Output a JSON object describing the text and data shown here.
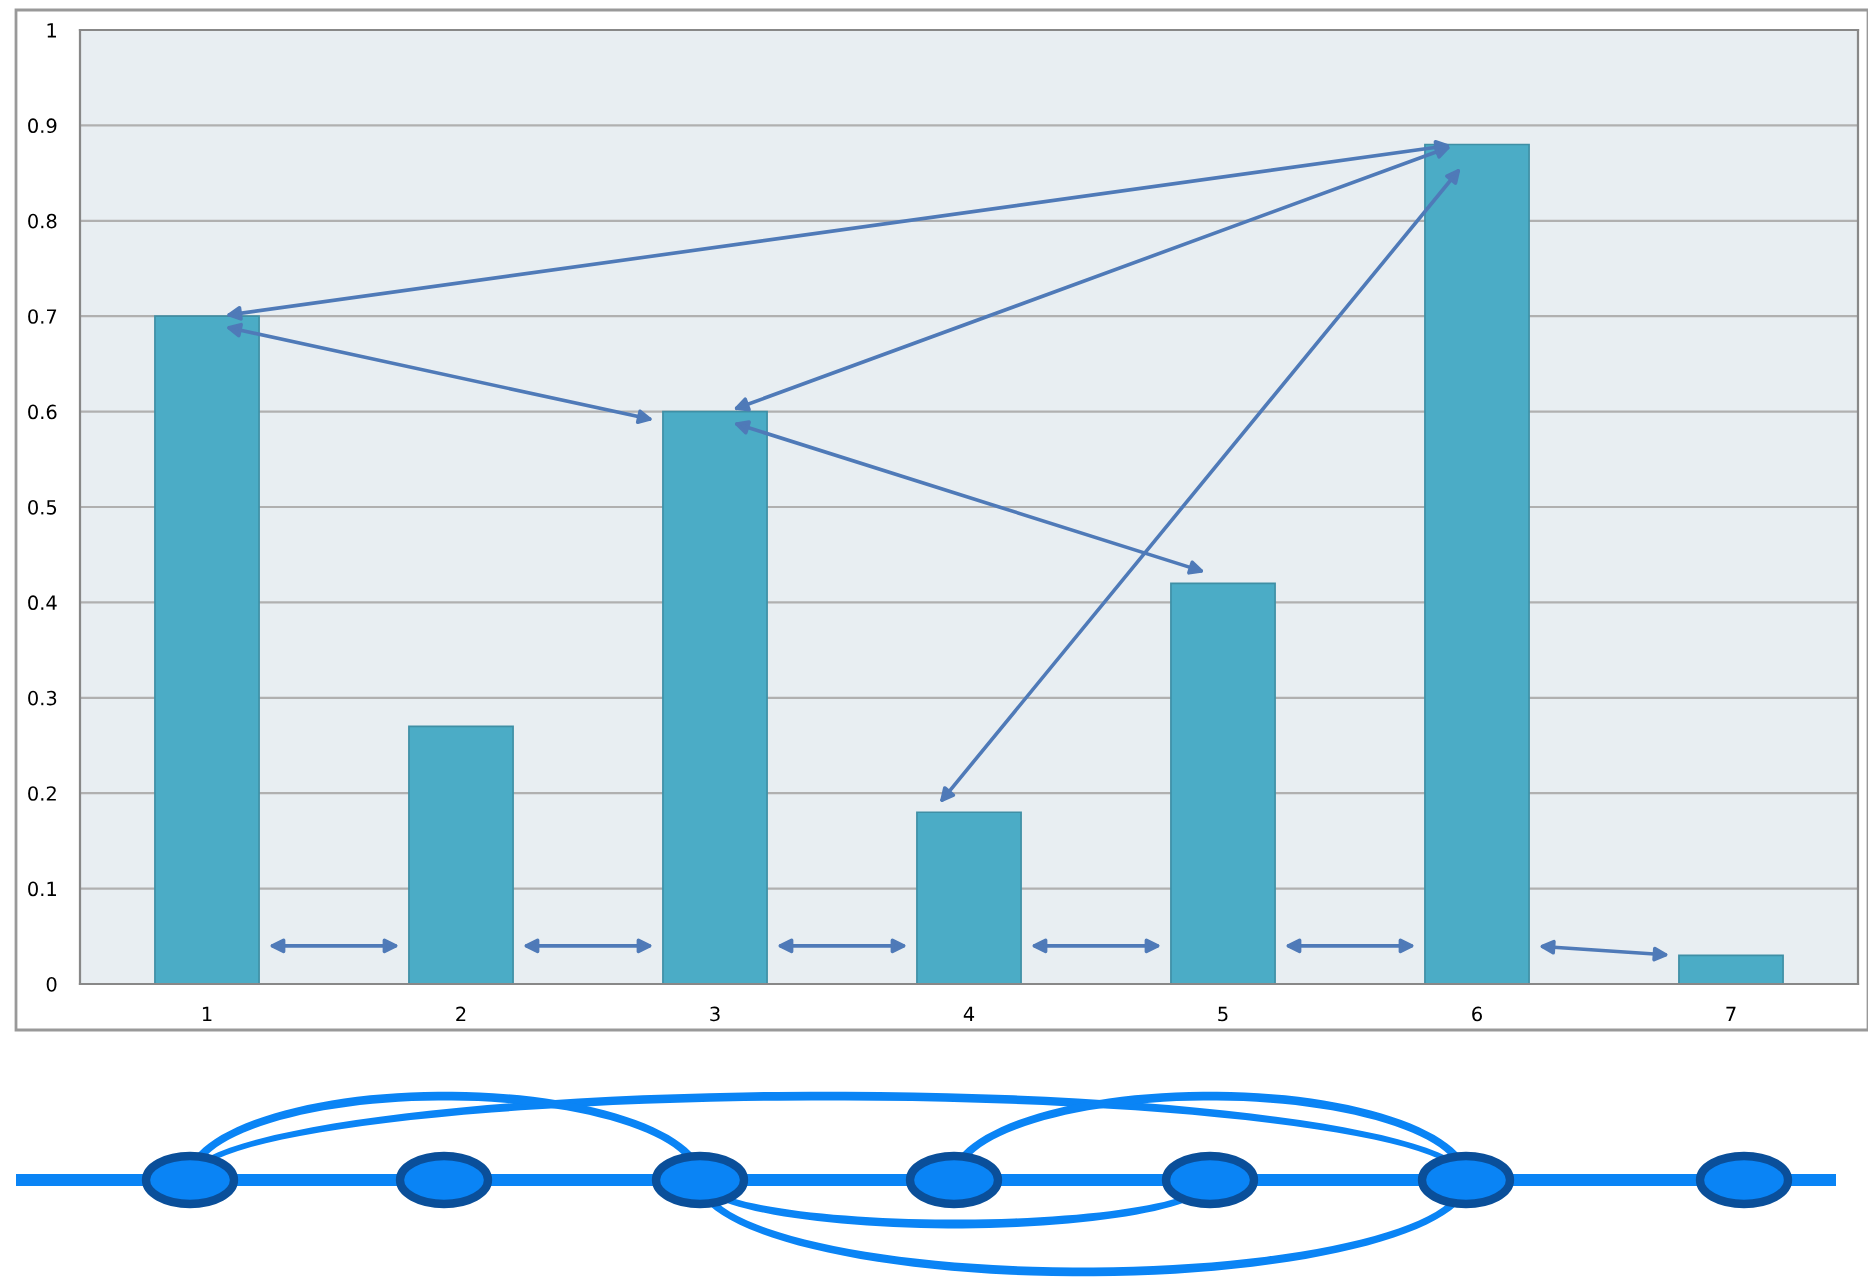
{
  "chart_data": {
    "type": "bar",
    "categories": [
      "1",
      "2",
      "3",
      "4",
      "5",
      "6",
      "7"
    ],
    "values": [
      0.7,
      0.27,
      0.6,
      0.18,
      0.42,
      0.88,
      0.03
    ],
    "color": "#4bacc6",
    "ylim": [
      0,
      1
    ],
    "yticks": [
      0,
      0.1,
      0.2,
      0.3,
      0.4,
      0.5,
      0.6,
      0.7,
      0.8,
      0.9,
      1
    ],
    "grid": "y"
  }
}
